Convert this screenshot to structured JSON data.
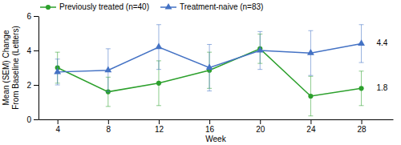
{
  "chart_data": {
    "type": "line",
    "x": [
      4,
      8,
      12,
      16,
      20,
      24,
      28
    ],
    "xlim": [
      2.5,
      30.5
    ],
    "xticks": [
      4,
      8,
      12,
      16,
      20,
      24,
      28
    ],
    "ylim": [
      0,
      6
    ],
    "yticks": [
      0,
      2,
      4,
      6
    ],
    "x_label": "Week",
    "y_label": "Mean (SEM) Change\nFrom Baseline (Letters)",
    "grid": false,
    "legend": "upper left",
    "series": [
      {
        "name": "Previously treated (n=40)",
        "color": "#2ca02c",
        "marker": "circle",
        "line_style": "solid",
        "values": [
          3.0,
          1.6,
          2.1,
          2.85,
          4.1,
          1.35,
          1.8
        ],
        "errors": [
          0.9,
          0.85,
          1.3,
          1.05,
          0.85,
          1.15,
          1.0
        ]
      },
      {
        "name": "Treatment-naive (n=83)",
        "color": "#4472c4",
        "marker": "triangle",
        "line_style": "solid",
        "values": [
          2.75,
          2.85,
          4.2,
          3.0,
          4.0,
          3.85,
          4.4
        ],
        "errors": [
          0.75,
          1.25,
          1.3,
          1.35,
          1.1,
          1.3,
          1.1
        ]
      }
    ],
    "annotations": [
      {
        "text": "4.4",
        "x": 29.2,
        "y": 4.4
      },
      {
        "text": "1.8",
        "x": 29.2,
        "y": 1.8
      }
    ]
  }
}
